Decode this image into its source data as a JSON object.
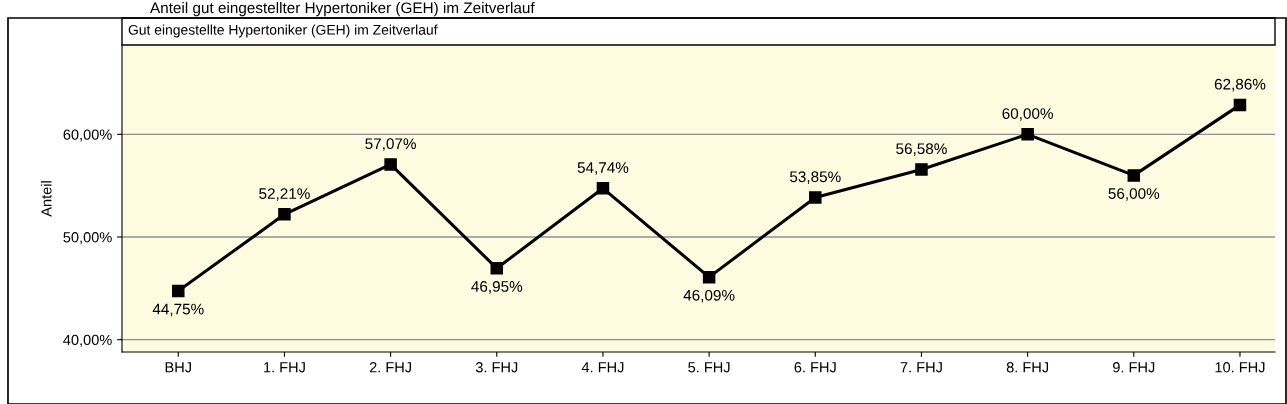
{
  "chart_data": {
    "type": "line",
    "title": "Gut eingestellte Hypertoniker (GEH) im Zeitverlauf",
    "subtitle": "Anteil gut eingestellter Hypertoniker (GEH) im Zeitverlauf",
    "ylabel": "Anteil",
    "categories": [
      "BHJ",
      "1. FHJ",
      "2. FHJ",
      "3. FHJ",
      "4. FHJ",
      "5. FHJ",
      "6. FHJ",
      "7. FHJ",
      "8. FHJ",
      "9. FHJ",
      "10. FHJ"
    ],
    "series": [
      {
        "color": "#000000",
        "values": [
          44.75,
          52.21,
          57.07,
          46.95,
          54.74,
          46.09,
          53.85,
          56.58,
          60.0,
          56.0,
          62.86
        ],
        "value_labels": [
          "44,75%",
          "52,21%",
          "57,07%",
          "46,95%",
          "54,74%",
          "46,09%",
          "53,85%",
          "56,58%",
          "60,00%",
          "56,00%",
          "62,86%"
        ]
      }
    ],
    "ylim": [
      38.8,
      68.7
    ],
    "yticks": [
      {
        "value": 40,
        "label": "40,00%"
      },
      {
        "value": 50,
        "label": "50,00%"
      },
      {
        "value": 60,
        "label": "60,00%"
      }
    ],
    "grid": "y",
    "legend": false,
    "marker": "square",
    "line_style": "solid"
  }
}
